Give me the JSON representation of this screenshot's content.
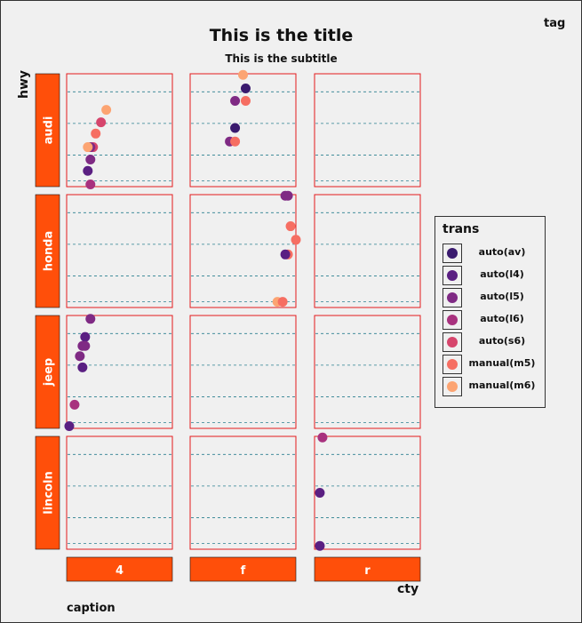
{
  "header": {
    "title": "This is the title",
    "subtitle": "This is the subtitle",
    "tag": "tag"
  },
  "footer": {
    "caption": "caption"
  },
  "chart_data": {
    "type": "scatter",
    "title": "This is the title",
    "subtitle": "This is the subtitle",
    "xlabel": "cty",
    "ylabel": "hwy",
    "facet_cols": [
      "4",
      "f",
      "r"
    ],
    "facet_rows": [
      "audi",
      "honda",
      "jeep",
      "lincoln"
    ],
    "gridlines": "horizontal dashed",
    "legend": {
      "title": "trans",
      "position": "right",
      "entries": [
        {
          "label": "auto(av)",
          "color": "#3a1a6e"
        },
        {
          "label": "auto(l4)",
          "color": "#5a1f82"
        },
        {
          "label": "auto(l5)",
          "color": "#7f2a84"
        },
        {
          "label": "auto(l6)",
          "color": "#a8317e"
        },
        {
          "label": "auto(s6)",
          "color": "#d6456c"
        },
        {
          "label": "manual(m5)",
          "color": "#f66e62"
        },
        {
          "label": "manual(m6)",
          "color": "#fca472"
        }
      ]
    },
    "panels": {
      "audi|4": [
        {
          "x": 17.5,
          "y": 0.68,
          "trans": "manual(m6)"
        },
        {
          "x": 16.5,
          "y": 0.57,
          "trans": "auto(s6)"
        },
        {
          "x": 15.5,
          "y": 0.47,
          "trans": "manual(m5)"
        },
        {
          "x": 15.0,
          "y": 0.35,
          "trans": "auto(s6)"
        },
        {
          "x": 14.5,
          "y": 0.35,
          "trans": "auto(l5)"
        },
        {
          "x": 14.0,
          "y": 0.35,
          "trans": "manual(m6)"
        },
        {
          "x": 14.5,
          "y": 0.24,
          "trans": "auto(l5)"
        },
        {
          "x": 14.0,
          "y": 0.14,
          "trans": "auto(l4)"
        },
        {
          "x": 14.5,
          "y": 0.02,
          "trans": "auto(l6)"
        }
      ],
      "audi|f": [
        {
          "x": 20.0,
          "y": 0.99,
          "trans": "manual(m6)"
        },
        {
          "x": 20.5,
          "y": 0.87,
          "trans": "auto(av)"
        },
        {
          "x": 18.5,
          "y": 0.76,
          "trans": "auto(l5)"
        },
        {
          "x": 20.5,
          "y": 0.76,
          "trans": "manual(m5)"
        },
        {
          "x": 18.5,
          "y": 0.52,
          "trans": "auto(av)"
        },
        {
          "x": 17.5,
          "y": 0.4,
          "trans": "auto(l5)"
        },
        {
          "x": 18.5,
          "y": 0.4,
          "trans": "manual(m5)"
        }
      ],
      "honda|f": [
        {
          "x": 28.0,
          "y": 0.99,
          "trans": "auto(l5)"
        },
        {
          "x": 28.5,
          "y": 0.99,
          "trans": "auto(l5)"
        },
        {
          "x": 29.0,
          "y": 0.72,
          "trans": "manual(m5)"
        },
        {
          "x": 30.0,
          "y": 0.6,
          "trans": "manual(m5)"
        },
        {
          "x": 28.5,
          "y": 0.47,
          "trans": "manual(m5)"
        },
        {
          "x": 28.0,
          "y": 0.47,
          "trans": "auto(l4)"
        },
        {
          "x": 26.5,
          "y": 0.05,
          "trans": "manual(m6)"
        },
        {
          "x": 27.5,
          "y": 0.05,
          "trans": "manual(m5)"
        }
      ],
      "jeep|4": [
        {
          "x": 14.5,
          "y": 0.97,
          "trans": "auto(l5)"
        },
        {
          "x": 13.5,
          "y": 0.81,
          "trans": "auto(l4)"
        },
        {
          "x": 13.0,
          "y": 0.73,
          "trans": "auto(l5)"
        },
        {
          "x": 13.5,
          "y": 0.73,
          "trans": "auto(l5)"
        },
        {
          "x": 12.5,
          "y": 0.64,
          "trans": "auto(l5)"
        },
        {
          "x": 13.0,
          "y": 0.54,
          "trans": "auto(l4)"
        },
        {
          "x": 11.5,
          "y": 0.21,
          "trans": "auto(l6)"
        },
        {
          "x": 10.5,
          "y": 0.02,
          "trans": "auto(l4)"
        }
      ],
      "lincoln|r": [
        {
          "x": 11.5,
          "y": 0.99,
          "trans": "auto(l6)"
        },
        {
          "x": 11.0,
          "y": 0.5,
          "trans": "auto(l4)"
        },
        {
          "x": 11.0,
          "y": 0.03,
          "trans": "auto(l4)"
        }
      ]
    }
  }
}
